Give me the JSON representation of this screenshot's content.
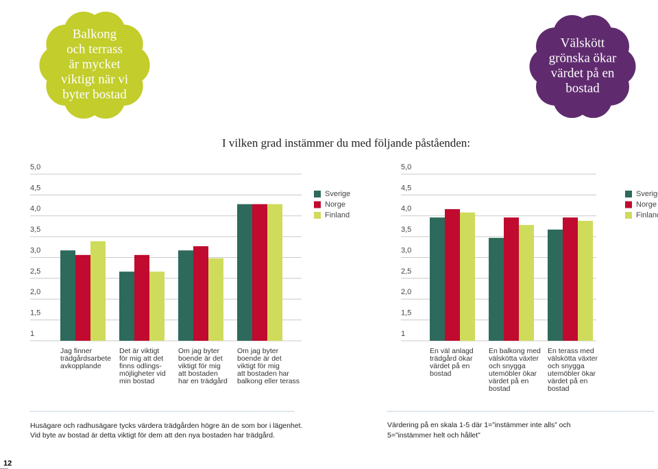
{
  "flowers": [
    {
      "lines": [
        "Balkong",
        "och terrass",
        "är mycket",
        "viktigt när vi",
        "byter bostad"
      ]
    },
    {
      "lines": [
        "Välskött",
        "grönska ökar",
        "värdet på en",
        "bostad"
      ]
    }
  ],
  "question": "I vilken grad instämmer du med följande påståenden:",
  "chart_data": [
    {
      "type": "bar",
      "categories": [
        [
          "Jag finner",
          "trädgårdsarbete",
          "avkopplande"
        ],
        [
          "Det är viktigt",
          "för mig att det",
          "finns odlings-",
          "möjligheter vid",
          "min bostad"
        ],
        [
          "Om jag byter",
          "boende är det",
          "viktigt för mig",
          "att bostaden",
          "har en trädgård"
        ],
        [
          "Om jag byter",
          "boende är det",
          "viktigt för mig",
          "att bostaden har",
          "balkong eller terass"
        ]
      ],
      "series": [
        {
          "name": "Sverige",
          "color": "#2d6a5c",
          "values": [
            3.17,
            2.66,
            3.17,
            4.28
          ]
        },
        {
          "name": "Norge",
          "color": "#c00a2f",
          "values": [
            3.06,
            3.06,
            3.27,
            4.28
          ]
        },
        {
          "name": "Finland",
          "color": "#cfdb5b",
          "values": [
            3.39,
            2.66,
            2.98,
            4.28
          ]
        }
      ],
      "ylim": [
        1,
        5
      ],
      "yticks": [
        1,
        {
          "value": 1.5,
          "label": "1,5"
        },
        {
          "value": 2,
          "label": "2,0"
        },
        {
          "value": 2.5,
          "label": "2,5"
        },
        {
          "value": 3,
          "label": "3,0"
        },
        {
          "value": 3.5,
          "label": "3,5"
        },
        {
          "value": 4,
          "label": "4,0"
        },
        {
          "value": 4.5,
          "label": "4,5"
        },
        {
          "value": 5,
          "label": "5,0"
        }
      ],
      "grid": true
    },
    {
      "type": "bar",
      "categories": [
        [
          "En väl anlagd",
          "trädgård ökar",
          "värdet på en",
          "bostad"
        ],
        [
          "En balkong med",
          "välskötta växter",
          "och snygga",
          "utemöbler ökar",
          "värdet på en",
          "bostad"
        ],
        [
          "En terass med",
          "välskötta växter",
          "och snygga",
          "utemöbler ökar",
          "värdet på en",
          "bostad"
        ]
      ],
      "series": [
        {
          "name": "Sverige",
          "color": "#2d6a5c",
          "values": [
            3.96,
            3.47,
            3.67
          ]
        },
        {
          "name": "Norge",
          "color": "#c00a2f",
          "values": [
            4.16,
            3.96,
            3.96
          ]
        },
        {
          "name": "Finland",
          "color": "#cfdb5b",
          "values": [
            4.08,
            3.78,
            3.88
          ]
        }
      ],
      "ylim": [
        1,
        5
      ],
      "yticks": [
        1,
        {
          "value": 1.5,
          "label": "1,5"
        },
        {
          "value": 2,
          "label": "2,0"
        },
        {
          "value": 2.5,
          "label": "2,5"
        },
        {
          "value": 3,
          "label": "3,0"
        },
        {
          "value": 3.5,
          "label": "3,5"
        },
        {
          "value": 4,
          "label": "4,0"
        },
        {
          "value": 4.5,
          "label": "4,5"
        },
        {
          "value": 5,
          "label": "5,0"
        }
      ],
      "grid": true
    }
  ],
  "notes": {
    "left": [
      "Husägare och radhusägare tycks värdera trädgården högre än de som bor i lägenhet.",
      "Vid byte av bostad är detta viktigt för dem att den nya bostaden har trädgård."
    ],
    "right": [
      "Värdering på en skala 1-5 där 1=”instämmer inte alls” och",
      "5=”instämmer helt och hållet”"
    ]
  },
  "page_number": "12"
}
